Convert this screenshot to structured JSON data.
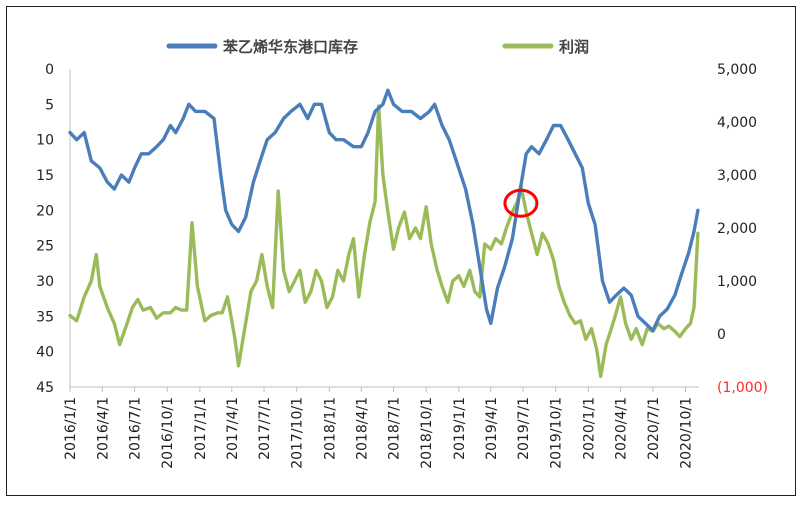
{
  "chart_data": {
    "type": "line",
    "legend": {
      "placement": "top-center"
    },
    "grid": false,
    "x_ticks": [
      "2016/1/1",
      "2016/4/1",
      "2016/7/1",
      "2016/10/1",
      "2017/1/1",
      "2017/4/1",
      "2017/7/1",
      "2017/10/1",
      "2018/1/1",
      "2018/4/1",
      "2018/7/1",
      "2018/10/1",
      "2019/1/1",
      "2019/4/1",
      "2019/7/1",
      "2019/10/1",
      "2020/1/1",
      "2020/4/1",
      "2020/7/1",
      "2020/10/1"
    ],
    "left_axis": {
      "ticks": [
        "0",
        "5",
        "10",
        "15",
        "20",
        "25",
        "30",
        "35",
        "40",
        "45"
      ],
      "range": [
        0,
        45
      ],
      "inverted": true
    },
    "right_axis": {
      "ticks": [
        "5,000",
        "4,000",
        "3,000",
        "2,000",
        "1,000",
        "0",
        "(1,000)"
      ],
      "range": [
        -1000,
        5000
      ],
      "negative_tick_color": "#ff2a2a"
    },
    "series": [
      {
        "name": "苯乙烯华东港口库存",
        "axis": "left",
        "color": "#4a7ebb",
        "points": [
          [
            "2016/1/1",
            9
          ],
          [
            "2016/1/20",
            10
          ],
          [
            "2016/2/10",
            9
          ],
          [
            "2016/3/1",
            13
          ],
          [
            "2016/3/25",
            14
          ],
          [
            "2016/4/15",
            16
          ],
          [
            "2016/5/5",
            17
          ],
          [
            "2016/5/25",
            15
          ],
          [
            "2016/6/15",
            16
          ],
          [
            "2016/7/1",
            14
          ],
          [
            "2016/7/20",
            12
          ],
          [
            "2016/8/10",
            12
          ],
          [
            "2016/9/1",
            11
          ],
          [
            "2016/9/20",
            10
          ],
          [
            "2016/10/10",
            8
          ],
          [
            "2016/10/25",
            9
          ],
          [
            "2016/11/15",
            7
          ],
          [
            "2016/12/1",
            5
          ],
          [
            "2016/12/20",
            6
          ],
          [
            "2017/1/15",
            6
          ],
          [
            "2017/2/10",
            7
          ],
          [
            "2017/3/1",
            15
          ],
          [
            "2017/3/15",
            20
          ],
          [
            "2017/4/1",
            22
          ],
          [
            "2017/4/20",
            23
          ],
          [
            "2017/5/10",
            21
          ],
          [
            "2017/6/1",
            16
          ],
          [
            "2017/6/20",
            13
          ],
          [
            "2017/7/10",
            10
          ],
          [
            "2017/8/1",
            9
          ],
          [
            "2017/8/25",
            7
          ],
          [
            "2017/9/15",
            6
          ],
          [
            "2017/10/10",
            5
          ],
          [
            "2017/11/1",
            7
          ],
          [
            "2017/11/20",
            5
          ],
          [
            "2017/12/10",
            5
          ],
          [
            "2018/1/1",
            9
          ],
          [
            "2018/1/20",
            10
          ],
          [
            "2018/2/10",
            10
          ],
          [
            "2018/3/10",
            11
          ],
          [
            "2018/4/1",
            11
          ],
          [
            "2018/4/20",
            9
          ],
          [
            "2018/5/10",
            6
          ],
          [
            "2018/6/1",
            5
          ],
          [
            "2018/6/15",
            3
          ],
          [
            "2018/7/1",
            5
          ],
          [
            "2018/7/25",
            6
          ],
          [
            "2018/8/20",
            6
          ],
          [
            "2018/9/15",
            7
          ],
          [
            "2018/10/10",
            6
          ],
          [
            "2018/10/25",
            5
          ],
          [
            "2018/11/15",
            8
          ],
          [
            "2018/12/5",
            10
          ],
          [
            "2018/12/25",
            13
          ],
          [
            "2019/1/20",
            17
          ],
          [
            "2019/2/10",
            22
          ],
          [
            "2019/3/1",
            28
          ],
          [
            "2019/3/20",
            34
          ],
          [
            "2019/4/1",
            36
          ],
          [
            "2019/4/20",
            31
          ],
          [
            "2019/5/10",
            28
          ],
          [
            "2019/6/1",
            24
          ],
          [
            "2019/6/20",
            18
          ],
          [
            "2019/7/10",
            12
          ],
          [
            "2019/7/25",
            11
          ],
          [
            "2019/8/15",
            12
          ],
          [
            "2019/9/5",
            10
          ],
          [
            "2019/9/25",
            8
          ],
          [
            "2019/10/15",
            8
          ],
          [
            "2019/11/5",
            10
          ],
          [
            "2019/11/25",
            12
          ],
          [
            "2019/12/15",
            14
          ],
          [
            "2020/1/1",
            19
          ],
          [
            "2020/1/20",
            22
          ],
          [
            "2020/2/10",
            30
          ],
          [
            "2020/3/1",
            33
          ],
          [
            "2020/3/20",
            32
          ],
          [
            "2020/4/10",
            31
          ],
          [
            "2020/5/1",
            32
          ],
          [
            "2020/5/20",
            35
          ],
          [
            "2020/6/10",
            36
          ],
          [
            "2020/7/1",
            37
          ],
          [
            "2020/7/20",
            35
          ],
          [
            "2020/8/10",
            34
          ],
          [
            "2020/9/1",
            32
          ],
          [
            "2020/9/20",
            29
          ],
          [
            "2020/10/10",
            26
          ],
          [
            "2020/10/25",
            23
          ],
          [
            "2020/11/5",
            20
          ]
        ]
      },
      {
        "name": "利润",
        "axis": "right",
        "color": "#9bbb59",
        "points": [
          [
            "2016/1/1",
            350
          ],
          [
            "2016/1/20",
            250
          ],
          [
            "2016/2/10",
            700
          ],
          [
            "2016/3/1",
            1000
          ],
          [
            "2016/3/15",
            1500
          ],
          [
            "2016/3/25",
            900
          ],
          [
            "2016/4/15",
            500
          ],
          [
            "2016/5/5",
            200
          ],
          [
            "2016/5/20",
            -200
          ],
          [
            "2016/6/10",
            200
          ],
          [
            "2016/6/25",
            500
          ],
          [
            "2016/7/10",
            650
          ],
          [
            "2016/7/25",
            450
          ],
          [
            "2016/8/15",
            500
          ],
          [
            "2016/9/1",
            300
          ],
          [
            "2016/9/20",
            400
          ],
          [
            "2016/10/10",
            400
          ],
          [
            "2016/10/25",
            500
          ],
          [
            "2016/11/10",
            450
          ],
          [
            "2016/11/25",
            450
          ],
          [
            "2016/12/10",
            2100
          ],
          [
            "2016/12/25",
            900
          ],
          [
            "2017/1/15",
            250
          ],
          [
            "2017/2/1",
            350
          ],
          [
            "2017/2/20",
            400
          ],
          [
            "2017/3/5",
            400
          ],
          [
            "2017/3/20",
            700
          ],
          [
            "2017/4/1",
            250
          ],
          [
            "2017/4/10",
            -100
          ],
          [
            "2017/4/20",
            -600
          ],
          [
            "2017/5/10",
            200
          ],
          [
            "2017/5/25",
            800
          ],
          [
            "2017/6/10",
            1000
          ],
          [
            "2017/6/25",
            1500
          ],
          [
            "2017/7/10",
            900
          ],
          [
            "2017/7/25",
            500
          ],
          [
            "2017/8/10",
            2700
          ],
          [
            "2017/8/25",
            1200
          ],
          [
            "2017/9/10",
            800
          ],
          [
            "2017/9/25",
            1000
          ],
          [
            "2017/10/10",
            1200
          ],
          [
            "2017/10/25",
            600
          ],
          [
            "2017/11/10",
            800
          ],
          [
            "2017/11/25",
            1200
          ],
          [
            "2017/12/10",
            1000
          ],
          [
            "2017/12/25",
            500
          ],
          [
            "2018/1/10",
            700
          ],
          [
            "2018/1/25",
            1200
          ],
          [
            "2018/2/10",
            1000
          ],
          [
            "2018/2/25",
            1500
          ],
          [
            "2018/3/10",
            1800
          ],
          [
            "2018/3/25",
            700
          ],
          [
            "2018/4/10",
            1500
          ],
          [
            "2018/4/25",
            2100
          ],
          [
            "2018/5/10",
            2500
          ],
          [
            "2018/5/20",
            4300
          ],
          [
            "2018/6/1",
            3000
          ],
          [
            "2018/6/15",
            2300
          ],
          [
            "2018/7/1",
            1600
          ],
          [
            "2018/7/15",
            2000
          ],
          [
            "2018/8/1",
            2300
          ],
          [
            "2018/8/15",
            1800
          ],
          [
            "2018/9/1",
            2000
          ],
          [
            "2018/9/15",
            1800
          ],
          [
            "2018/10/1",
            2400
          ],
          [
            "2018/10/15",
            1700
          ],
          [
            "2018/11/1",
            1200
          ],
          [
            "2018/11/15",
            900
          ],
          [
            "2018/12/1",
            600
          ],
          [
            "2018/12/15",
            1000
          ],
          [
            "2019/1/1",
            1100
          ],
          [
            "2019/1/15",
            900
          ],
          [
            "2019/2/1",
            1200
          ],
          [
            "2019/2/15",
            800
          ],
          [
            "2019/3/1",
            700
          ],
          [
            "2019/3/15",
            1700
          ],
          [
            "2019/4/1",
            1600
          ],
          [
            "2019/4/15",
            1800
          ],
          [
            "2019/5/1",
            1700
          ],
          [
            "2019/5/15",
            2000
          ],
          [
            "2019/6/1",
            2300
          ],
          [
            "2019/6/15",
            2500
          ],
          [
            "2019/6/25",
            2800
          ],
          [
            "2019/7/10",
            2300
          ],
          [
            "2019/7/25",
            1900
          ],
          [
            "2019/8/10",
            1500
          ],
          [
            "2019/8/25",
            1900
          ],
          [
            "2019/9/10",
            1700
          ],
          [
            "2019/9/25",
            1400
          ],
          [
            "2019/10/10",
            900
          ],
          [
            "2019/10/25",
            600
          ],
          [
            "2019/11/10",
            350
          ],
          [
            "2019/11/25",
            200
          ],
          [
            "2019/12/10",
            250
          ],
          [
            "2019/12/25",
            -100
          ],
          [
            "2020/1/10",
            100
          ],
          [
            "2020/1/25",
            -300
          ],
          [
            "2020/2/5",
            -800
          ],
          [
            "2020/2/20",
            -200
          ],
          [
            "2020/3/1",
            0
          ],
          [
            "2020/3/15",
            300
          ],
          [
            "2020/4/1",
            700
          ],
          [
            "2020/4/15",
            200
          ],
          [
            "2020/5/1",
            -100
          ],
          [
            "2020/5/15",
            100
          ],
          [
            "2020/6/1",
            -200
          ],
          [
            "2020/6/15",
            100
          ],
          [
            "2020/7/1",
            50
          ],
          [
            "2020/7/15",
            200
          ],
          [
            "2020/8/1",
            100
          ],
          [
            "2020/8/15",
            150
          ],
          [
            "2020/9/1",
            50
          ],
          [
            "2020/9/15",
            -50
          ],
          [
            "2020/10/1",
            100
          ],
          [
            "2020/10/15",
            200
          ],
          [
            "2020/10/25",
            500
          ],
          [
            "2020/11/5",
            1900
          ]
        ]
      }
    ],
    "annotations": [
      {
        "type": "circle",
        "color": "#ff0000",
        "at_date": "2019/6/25",
        "at_left_value": 19
      }
    ]
  }
}
